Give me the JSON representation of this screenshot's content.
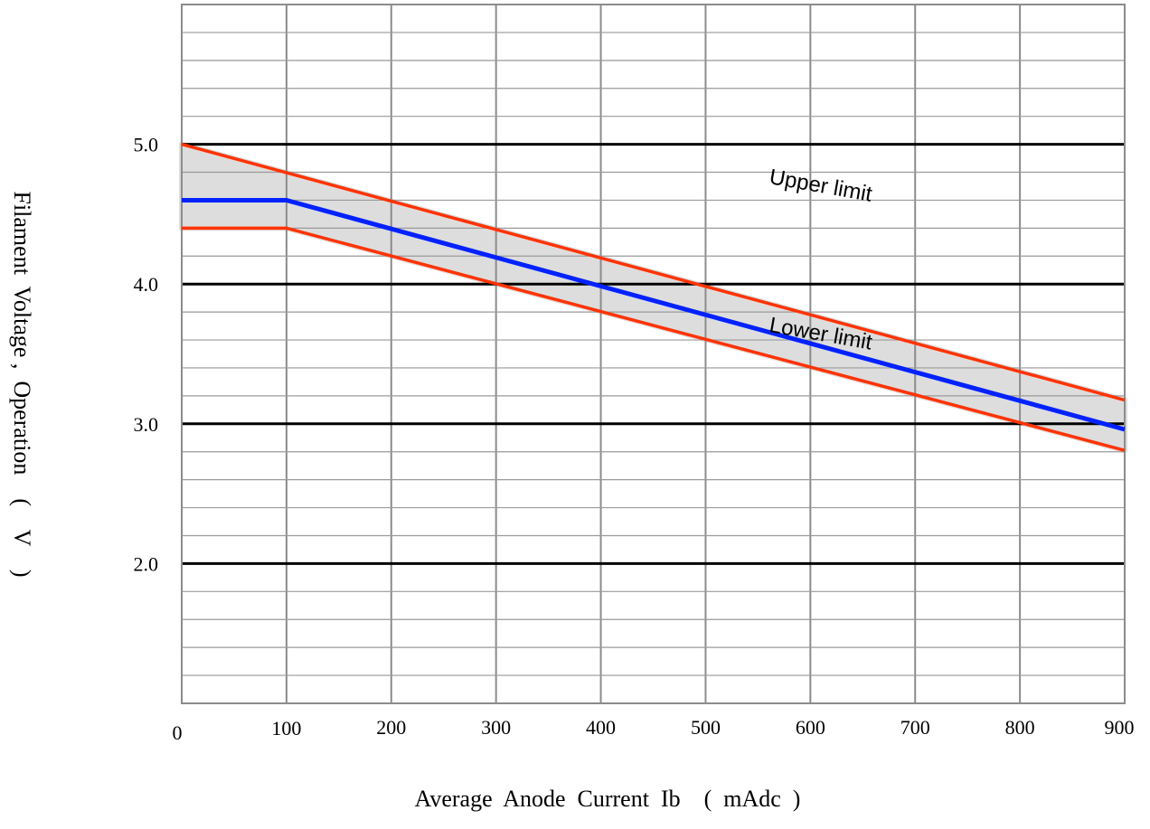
{
  "chart_data": {
    "type": "line",
    "title": "",
    "xlabel": "Average  Anode  Current  Ib    (  mAdc  )",
    "ylabel": "Filament  Voltage ,  Operation    (    V    )",
    "xlim": [
      0,
      900
    ],
    "ylim": [
      1.0,
      6.0
    ],
    "x_ticks": [
      "0",
      "100",
      "200",
      "300",
      "400",
      "500",
      "600",
      "700",
      "800",
      "900"
    ],
    "y_ticks": [
      "5.0",
      "4.0",
      "3.0",
      "2.0"
    ],
    "y_tick_values": [
      5.0,
      4.0,
      3.0,
      2.0
    ],
    "grid": true,
    "series": [
      {
        "key": "upper",
        "color": "#ff3300",
        "x": [
          0,
          900
        ],
        "y": [
          5.0,
          3.17
        ]
      },
      {
        "key": "nominal",
        "color": "#0022ff",
        "x": [
          0,
          100,
          900
        ],
        "y": [
          4.6,
          4.6,
          2.96
        ]
      },
      {
        "key": "lower",
        "color": "#ff3300",
        "x": [
          0,
          100,
          900
        ],
        "y": [
          4.4,
          4.4,
          2.81
        ]
      }
    ],
    "band": {
      "color": "#dddddd",
      "between": [
        "upper",
        "lower"
      ]
    },
    "annotations": [
      {
        "text": "Upper   limit",
        "x": 560,
        "y": 4.72,
        "rotate": 10
      },
      {
        "text": "Lower   limit",
        "x": 560,
        "y": 3.66,
        "rotate": 10
      }
    ]
  }
}
